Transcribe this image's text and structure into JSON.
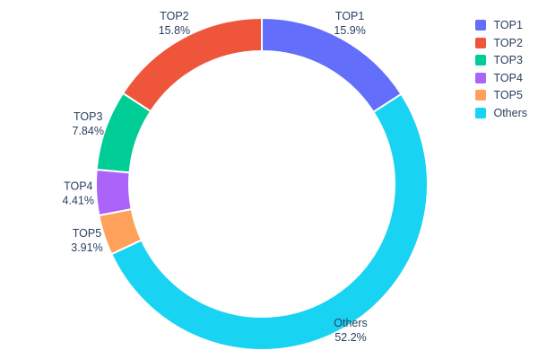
{
  "chart_data": {
    "type": "pie",
    "subtype": "donut",
    "title": "",
    "hole": 0.8,
    "direction": "clockwise",
    "start_angle_deg": 0,
    "legend_position": "top-right",
    "slices": [
      {
        "label": "TOP1",
        "value": 15.9,
        "display": "15.9%",
        "color": "#636EFA"
      },
      {
        "label": "TOP2",
        "value": 15.8,
        "display": "15.8%",
        "color": "#EF553B"
      },
      {
        "label": "TOP3",
        "value": 7.84,
        "display": "7.84%",
        "color": "#00CC96"
      },
      {
        "label": "TOP4",
        "value": 4.41,
        "display": "4.41%",
        "color": "#AB63FA"
      },
      {
        "label": "TOP5",
        "value": 3.91,
        "display": "3.91%",
        "color": "#FFA15A"
      },
      {
        "label": "Others",
        "value": 52.2,
        "display": "52.2%",
        "color": "#19D3F3"
      }
    ],
    "draw_order": [
      "TOP1",
      "Others",
      "TOP5",
      "TOP4",
      "TOP3",
      "TOP2"
    ],
    "legend_order": [
      "TOP1",
      "TOP2",
      "TOP3",
      "TOP4",
      "TOP5",
      "Others"
    ]
  },
  "style": {
    "text_color": "#2a3f5f",
    "background": "#ffffff",
    "slice_separator": "#ffffff"
  }
}
